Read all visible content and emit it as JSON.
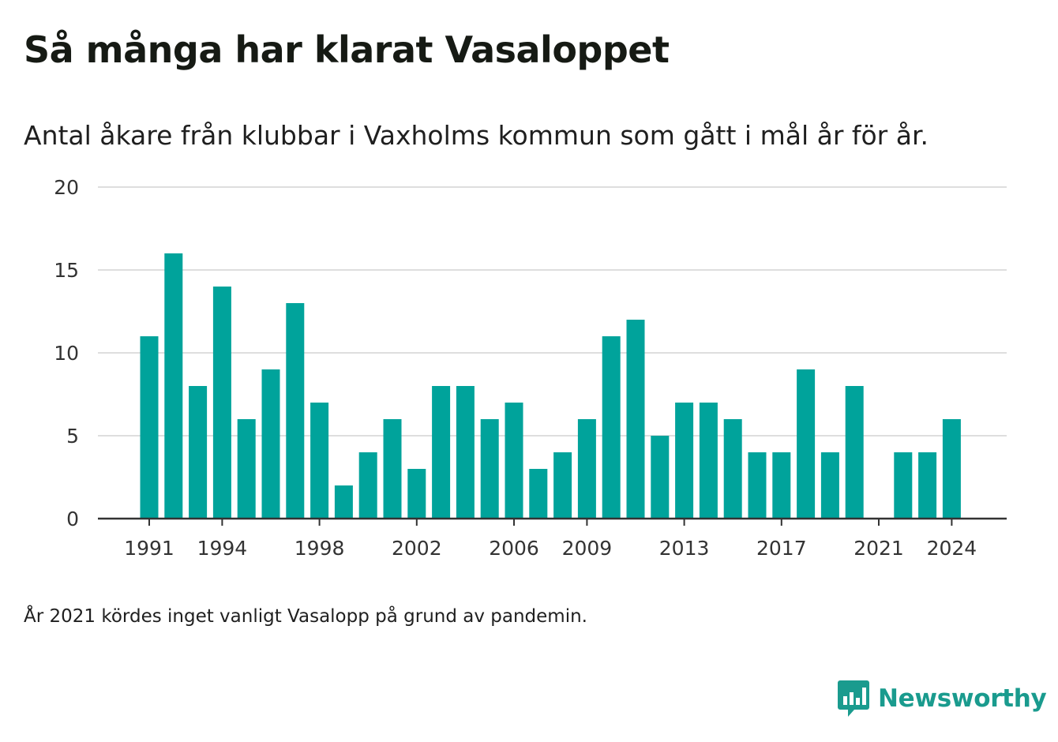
{
  "title": "Så många har klarat Vasaloppet",
  "subtitle": "Antal åkare från klubbar i Vaxholms kommun som gått i mål år för år.",
  "footnote": "År 2021 kördes inget vanligt Vasalopp på grund av pandemin.",
  "brand": {
    "name": "Newsworthy",
    "icon": "newsworthy-logo-icon",
    "color": "#1a9b8e"
  },
  "chart_data": {
    "type": "bar",
    "x": [
      1991,
      1992,
      1993,
      1994,
      1995,
      1996,
      1997,
      1998,
      1999,
      2000,
      2001,
      2002,
      2003,
      2004,
      2005,
      2006,
      2007,
      2008,
      2009,
      2010,
      2011,
      2012,
      2013,
      2014,
      2015,
      2016,
      2017,
      2018,
      2019,
      2020,
      2021,
      2022,
      2023,
      2024
    ],
    "values": [
      11,
      16,
      8,
      14,
      6,
      9,
      13,
      7,
      2,
      4,
      6,
      3,
      8,
      8,
      6,
      7,
      3,
      4,
      6,
      11,
      12,
      5,
      7,
      7,
      6,
      4,
      4,
      9,
      4,
      8,
      0,
      4,
      4,
      6
    ],
    "x_tick_labels": [
      "1991",
      "1994",
      "1998",
      "2002",
      "2006",
      "2009",
      "2013",
      "2017",
      "2021",
      "2024"
    ],
    "y_ticks": [
      0,
      5,
      10,
      15,
      20
    ],
    "ylim": [
      0,
      20
    ],
    "bar_color": "#00a39b",
    "grid": true,
    "legend": "none",
    "xlabel": "",
    "ylabel": ""
  }
}
